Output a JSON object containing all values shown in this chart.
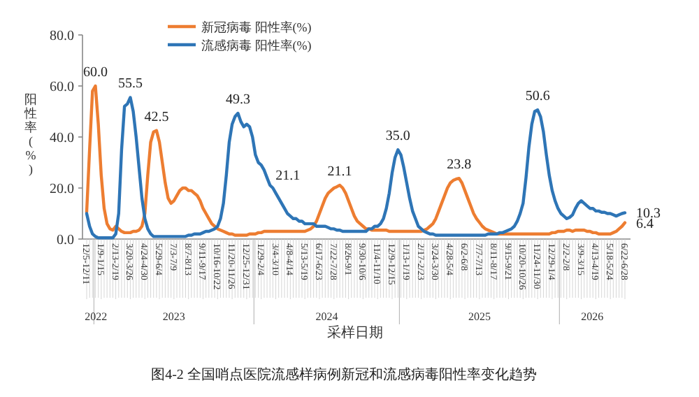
{
  "chart_data": {
    "type": "line",
    "title": "图4-2 全国哨点医院流感样病例新冠和流感病毒阳性率变化趋势",
    "xlabel": "采样日期",
    "ylabel": "阳性率(%)",
    "categories": [
      "12/5-12/11",
      null,
      null,
      null,
      null,
      "1/9-1/15",
      null,
      null,
      null,
      null,
      "2/13-2/19",
      null,
      null,
      null,
      null,
      "3/20-3/26",
      null,
      null,
      null,
      null,
      "4/24-4/30",
      null,
      null,
      null,
      null,
      "5/29-6/4",
      null,
      null,
      null,
      null,
      "7/3-7/9",
      null,
      null,
      null,
      null,
      "8/7-8/13",
      null,
      null,
      null,
      null,
      "9/11-9/17",
      null,
      null,
      null,
      null,
      "10/16-10/22",
      null,
      null,
      null,
      null,
      "11/20-11/26",
      null,
      null,
      null,
      null,
      "12/25-12/31",
      null,
      null,
      null,
      null,
      "1/29-2/4",
      null,
      null,
      null,
      null,
      "3/4-3/10",
      null,
      null,
      null,
      null,
      "4/8-4/14",
      null,
      null,
      null,
      null,
      "5/13-5/19",
      null,
      null,
      null,
      null,
      "6/17-6/23",
      null,
      null,
      null,
      null,
      "7/22-7/28",
      null,
      null,
      null,
      null,
      "8/26-9/1",
      null,
      null,
      null,
      null,
      "9/30-10/6",
      null,
      null,
      null,
      null,
      "11/4-11/10",
      null,
      null,
      null,
      null,
      "12/9-12/15",
      null,
      null,
      null,
      null,
      "1/13-1/19",
      null,
      null,
      null,
      null,
      "2/17-2/23",
      null,
      null,
      null,
      null,
      "3/24-3/30",
      null,
      null,
      null,
      null,
      "4/28-5/4",
      null,
      null,
      null,
      null,
      "6/2-6/8",
      null,
      null,
      null,
      null,
      "7/7-7/13",
      null,
      null,
      null,
      null,
      "8/11-8/17",
      null,
      null,
      null,
      null,
      "9/15-9/21",
      null,
      null,
      null,
      null,
      "10/20-10/26",
      null,
      null,
      null,
      null,
      "11/24-11/30",
      null,
      null,
      null,
      null,
      "12/29-1/4",
      null,
      null,
      null,
      null,
      "2/2-2/8",
      null,
      null,
      null,
      null,
      "3/9-3/15",
      null,
      null,
      null,
      null,
      "4/13-4/19",
      null,
      null,
      null,
      null,
      "5/18-5/24",
      null,
      null,
      null,
      null,
      "6/22-6/28"
    ],
    "series": [
      {
        "name": "新冠病毒 阳性率(%)",
        "color": "#ed7d31",
        "values": [
          10.6,
          35,
          58,
          60.0,
          45,
          25,
          12,
          6,
          4,
          3.5,
          5,
          4,
          3,
          2.5,
          2.5,
          2.5,
          3,
          3,
          3.5,
          5,
          10,
          25,
          38,
          42,
          42.5,
          38,
          30,
          22,
          16,
          14,
          15,
          17,
          19,
          20,
          20,
          19,
          19,
          18,
          17,
          15,
          12,
          10,
          8,
          6,
          5,
          4,
          3.5,
          3,
          2.5,
          2,
          2,
          1.5,
          1.5,
          1.5,
          1.5,
          1.5,
          2,
          2,
          2,
          2.5,
          2.5,
          3,
          3,
          3,
          3,
          3,
          3,
          3,
          3,
          3,
          3,
          3,
          3,
          3,
          3,
          3,
          3.5,
          4,
          5,
          7,
          10,
          13,
          16,
          18,
          19,
          20,
          20.5,
          21.1,
          20,
          18,
          15,
          12,
          9,
          7,
          6,
          5,
          4,
          4,
          3.5,
          3.5,
          3.5,
          3.5,
          3.5,
          3.5,
          3,
          3,
          3,
          3,
          3,
          3,
          3,
          3,
          3,
          3,
          3,
          3,
          3.5,
          4,
          5,
          6,
          8,
          11,
          14,
          17,
          20,
          22,
          23,
          23.5,
          23.8,
          22,
          19,
          16,
          13,
          10,
          8,
          6.5,
          5,
          4,
          3.5,
          3,
          2.5,
          2,
          2,
          2,
          2,
          2,
          2,
          2,
          2,
          2,
          2,
          2,
          2,
          2,
          2,
          2,
          2,
          2,
          2,
          2,
          2.5,
          2.5,
          3,
          3,
          3,
          3.5,
          3.5,
          3,
          3.5,
          3.5,
          3.5,
          3.5,
          3,
          3,
          2.5,
          2.5,
          2,
          2,
          2,
          2,
          2,
          2.5,
          3,
          4,
          5,
          6.4
        ],
        "value_labels": [
          null,
          null,
          null,
          "60.0",
          null,
          null,
          null,
          null,
          null,
          null,
          null,
          null,
          null,
          null,
          null,
          null,
          null,
          null,
          null,
          null,
          null,
          null,
          null,
          null,
          "42.5",
          null,
          null,
          null,
          null,
          null,
          null,
          null,
          null,
          null,
          null,
          null,
          null,
          null,
          null,
          null,
          null,
          null,
          null,
          null,
          null,
          null,
          null,
          null,
          null,
          null,
          null,
          null,
          null,
          null,
          null,
          null,
          null,
          null,
          null,
          null,
          null,
          null,
          null,
          null,
          null,
          null,
          null,
          null,
          null,
          null,
          null,
          null,
          null,
          null,
          null,
          null,
          null,
          null,
          null,
          null,
          null,
          null,
          null,
          null,
          null,
          null,
          null,
          "21.1",
          null,
          null,
          null,
          null,
          null,
          null,
          null,
          null,
          null,
          null,
          null,
          null,
          null,
          null,
          null,
          null,
          null,
          null,
          null,
          null,
          null,
          null,
          null,
          null,
          null,
          null,
          null,
          null,
          null,
          null,
          null,
          null,
          null,
          null,
          null,
          null,
          null,
          null,
          null,
          null,
          "23.8",
          null,
          null,
          null,
          null,
          null,
          null,
          null,
          null,
          null,
          null,
          null,
          null,
          null,
          null,
          null,
          null,
          null,
          null,
          null,
          null,
          null,
          null,
          null,
          null,
          null,
          null,
          null,
          null,
          null,
          null,
          null,
          null,
          null,
          null,
          null,
          null,
          null,
          null,
          null,
          null,
          null,
          null,
          null,
          null,
          null,
          null,
          null,
          null,
          null,
          null,
          null,
          null,
          null,
          null,
          null,
          null,
          "6.4"
        ]
      },
      {
        "name": "流感病毒 阳性率(%)",
        "color": "#2e75b6",
        "values": [
          10,
          5,
          2,
          1,
          0.5,
          0.5,
          0.5,
          0.5,
          0.5,
          0.5,
          2,
          10,
          35,
          52,
          53,
          55.5,
          50,
          40,
          28,
          16,
          8,
          4,
          2,
          1,
          1,
          1,
          1,
          1,
          1,
          1,
          1,
          1,
          1,
          1,
          1,
          1.5,
          1.5,
          2,
          2,
          2,
          2.5,
          3,
          3,
          3.5,
          4,
          5,
          8,
          14,
          25,
          38,
          45,
          48,
          49.3,
          46,
          44,
          45,
          44,
          40,
          33,
          30,
          29,
          27,
          24,
          21.1,
          20,
          18,
          16,
          14,
          12,
          10,
          9,
          8,
          8,
          7,
          7,
          6,
          6,
          6,
          6,
          5,
          5,
          5,
          5,
          4.5,
          4,
          4,
          3.5,
          3.5,
          3,
          3,
          3,
          3,
          3,
          3,
          3,
          3,
          3,
          4,
          4,
          5,
          5,
          6,
          8,
          12,
          18,
          26,
          32,
          35.0,
          33,
          28,
          22,
          16,
          11,
          8,
          5,
          4,
          3,
          2.5,
          2,
          2,
          1.5,
          1.5,
          1.5,
          1.5,
          1.5,
          1.5,
          1.5,
          1.5,
          1.5,
          1.5,
          1.5,
          1.5,
          1.5,
          1.5,
          1.5,
          1.5,
          1.5,
          1.5,
          2,
          2,
          2,
          2,
          2.5,
          2.5,
          3,
          3.5,
          4,
          5,
          7,
          10,
          14,
          24,
          36,
          45,
          50,
          50.6,
          48,
          42,
          33,
          25,
          19,
          15,
          12,
          10,
          9,
          8,
          8.5,
          9.5,
          12,
          14,
          15,
          14,
          13,
          12,
          12,
          11,
          11,
          10.5,
          10.5,
          10,
          10,
          9.5,
          9,
          9.5,
          10,
          10.3
        ],
        "value_labels": [
          null,
          null,
          null,
          null,
          null,
          null,
          null,
          null,
          null,
          null,
          null,
          null,
          null,
          null,
          null,
          "55.5",
          null,
          null,
          null,
          null,
          null,
          null,
          null,
          null,
          null,
          null,
          null,
          null,
          null,
          null,
          null,
          null,
          null,
          null,
          null,
          null,
          null,
          null,
          null,
          null,
          null,
          null,
          null,
          null,
          null,
          null,
          null,
          null,
          null,
          null,
          null,
          null,
          "49.3",
          null,
          null,
          null,
          null,
          null,
          null,
          null,
          null,
          null,
          null,
          "21.1",
          null,
          null,
          null,
          null,
          null,
          null,
          null,
          null,
          null,
          null,
          null,
          null,
          null,
          null,
          null,
          null,
          null,
          null,
          null,
          null,
          null,
          null,
          null,
          null,
          null,
          null,
          null,
          null,
          null,
          null,
          null,
          null,
          null,
          null,
          null,
          null,
          null,
          null,
          null,
          null,
          null,
          null,
          null,
          "35.0",
          null,
          null,
          null,
          null,
          null,
          null,
          null,
          null,
          null,
          null,
          null,
          null,
          null,
          null,
          null,
          null,
          null,
          null,
          null,
          null,
          null,
          null,
          null,
          null,
          null,
          null,
          null,
          null,
          null,
          null,
          null,
          null,
          null,
          null,
          null,
          null,
          null,
          null,
          null,
          null,
          null,
          null,
          null,
          null,
          null,
          null,
          null,
          "50.6",
          null,
          null,
          null,
          null,
          null,
          null,
          null,
          null,
          null,
          null,
          null,
          null,
          null,
          null,
          null,
          null,
          null,
          null,
          null,
          null,
          null,
          null,
          null,
          null,
          null,
          null,
          null,
          null,
          null,
          "10.3"
        ]
      }
    ],
    "ylim": [
      0,
      80
    ],
    "yticks": [
      {
        "value": 0,
        "label": "0.0"
      },
      {
        "value": 20,
        "label": "20.0"
      },
      {
        "value": 40,
        "label": "40.0"
      },
      {
        "value": 60,
        "label": "60.0"
      },
      {
        "value": 80,
        "label": "80.0"
      }
    ],
    "legend": "top",
    "grid": false,
    "annotations": [
      "2022",
      "2023",
      "2024",
      "2025",
      "2026"
    ]
  }
}
